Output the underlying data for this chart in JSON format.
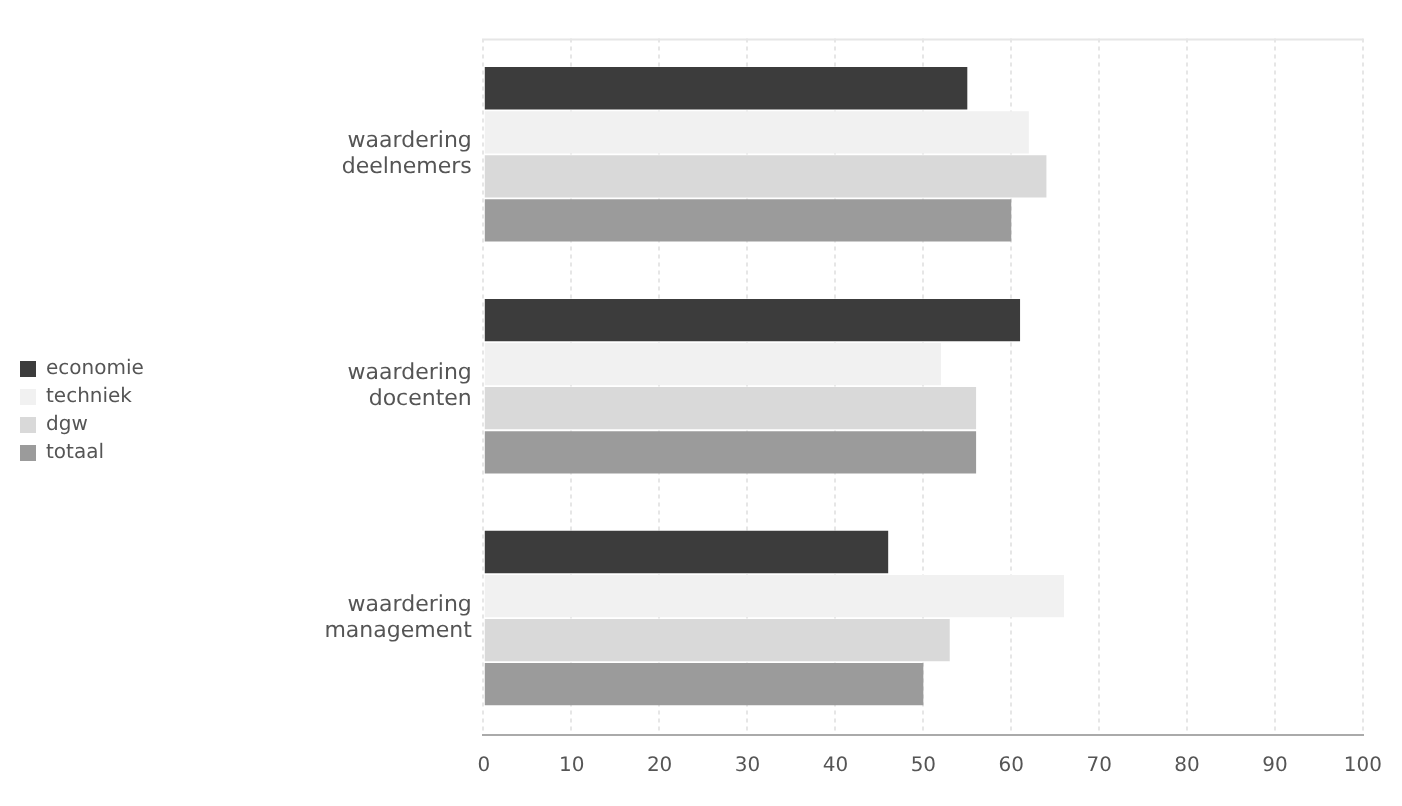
{
  "chart_data": {
    "type": "bar",
    "orientation": "horizontal",
    "categories": [
      "waardering deelnemers",
      "waardering docenten",
      "waardering management"
    ],
    "series": [
      {
        "name": "economie",
        "color": "#3c3c3c",
        "values": [
          55,
          61,
          46
        ]
      },
      {
        "name": "techniek",
        "color": "#f1f1f1",
        "values": [
          62,
          52,
          66
        ]
      },
      {
        "name": "dgw",
        "color": "#d9d9d9",
        "values": [
          64,
          56,
          53
        ]
      },
      {
        "name": "totaal",
        "color": "#9b9b9b",
        "values": [
          60,
          56,
          50
        ]
      }
    ],
    "xlim": [
      0,
      100
    ],
    "xticks": [
      0,
      10,
      20,
      30,
      40,
      50,
      60,
      70,
      80,
      90,
      100
    ],
    "grid": "x",
    "legend": "left"
  }
}
